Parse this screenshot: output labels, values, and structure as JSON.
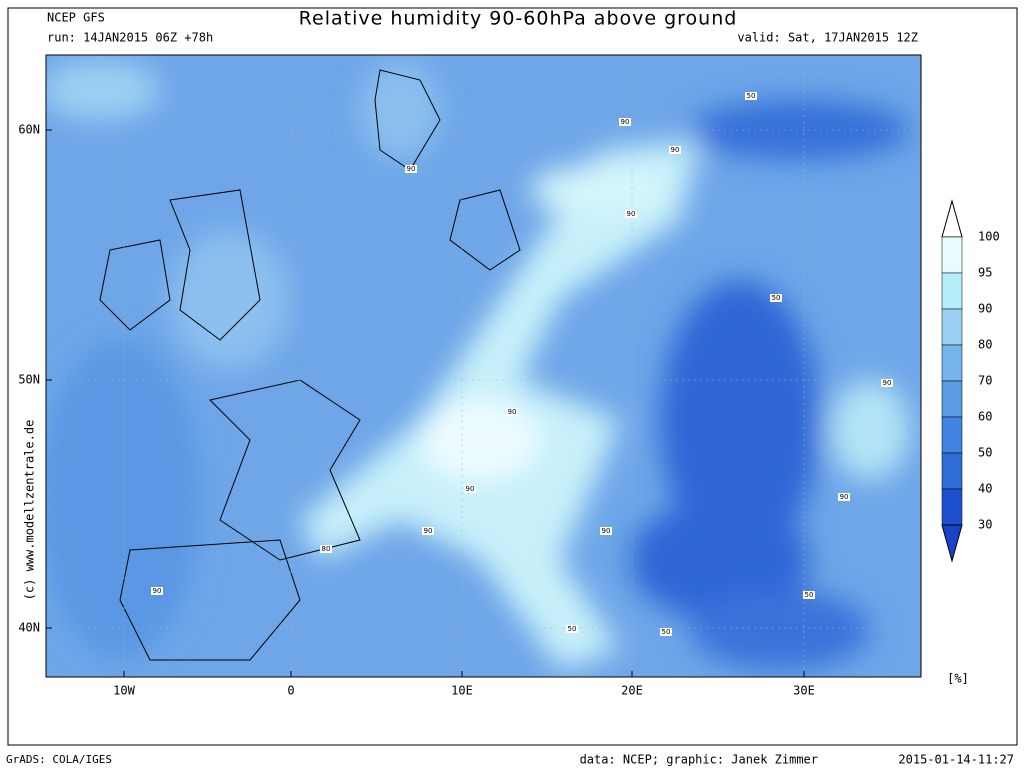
{
  "header": {
    "model": "NCEP GFS",
    "title": "Relative humidity 90-60hPa above ground",
    "run": "run: 14JAN2015 06Z +78h",
    "valid": "valid: Sat, 17JAN2015 12Z"
  },
  "map": {
    "lat_labels": [
      "60N",
      "50N",
      "40N"
    ],
    "lon_labels": [
      "10W",
      "0",
      "10E",
      "20E",
      "30E"
    ],
    "watermark": "(c) www.modellzentrale.de",
    "contour_labels": [
      50,
      90,
      90,
      90,
      90,
      50,
      90,
      90,
      90,
      90,
      90,
      80,
      90,
      90,
      50,
      50,
      50
    ]
  },
  "colorbar": {
    "levels": [
      100,
      95,
      90,
      80,
      70,
      60,
      50,
      40,
      30
    ],
    "unit": "[%]"
  },
  "footer": {
    "software": "GrADS: COLA/IGES",
    "credit": "data: NCEP; graphic: Janek Zimmer",
    "timestamp": "2015-01-14-11:27"
  }
}
